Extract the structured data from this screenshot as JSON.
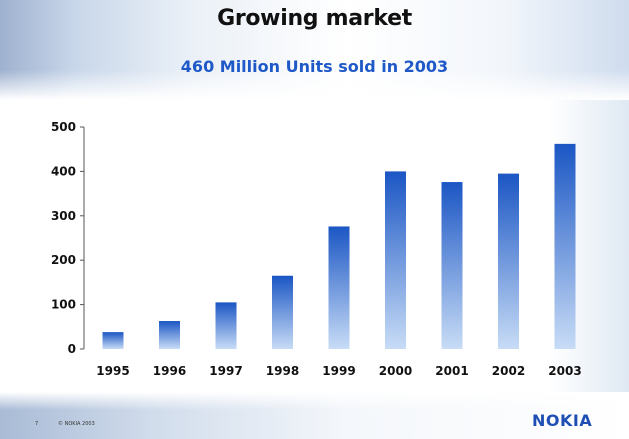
{
  "slide": {
    "title": "Growing market",
    "subtitle": "460 Million Units sold in 2003",
    "page_number": "7",
    "copyright": "© NOKIA 2003",
    "logo": "NOKIA"
  },
  "colors": {
    "subtitle": "#1f59c8",
    "bar_top": "#1b56c4",
    "bar_bottom": "#c8dcf6",
    "logo": "#1f4fb4"
  },
  "chart_data": {
    "type": "bar",
    "title": "",
    "xlabel": "",
    "ylabel": "",
    "categories": [
      "1995",
      "1996",
      "1997",
      "1998",
      "1999",
      "2000",
      "2001",
      "2002",
      "2003"
    ],
    "values": [
      38,
      63,
      105,
      165,
      276,
      400,
      376,
      395,
      462
    ],
    "ylim": [
      0,
      500
    ],
    "yticks": [
      0,
      100,
      200,
      300,
      400,
      500
    ],
    "grid": false,
    "legend": "none"
  }
}
